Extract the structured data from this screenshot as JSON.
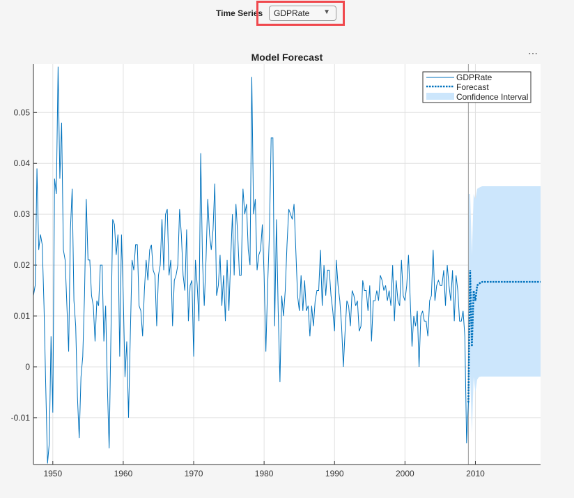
{
  "controls": {
    "time_series_label": "Time Series",
    "time_series_selected": "GDPRate",
    "more_options": "⋯"
  },
  "colors": {
    "series": "#0072bd",
    "ci": "#cce6fc",
    "highlight": "#f0484d"
  },
  "chart_data": {
    "type": "line",
    "title": "Model Forecast",
    "xlim": [
      1947.25,
      2019.25
    ],
    "ylim": [
      -0.0192,
      0.0595
    ],
    "xticks": [
      1950,
      1960,
      1970,
      1980,
      1990,
      2000,
      2010
    ],
    "xtick_labels": [
      "1950",
      "1960",
      "1970",
      "1980",
      "1990",
      "2000",
      "2010"
    ],
    "yticks": [
      -0.01,
      0,
      0.01,
      0.02,
      0.03,
      0.04,
      0.05
    ],
    "ytick_labels": [
      "-0.01",
      "0",
      "0.01",
      "0.02",
      "0.03",
      "0.04",
      "0.05"
    ],
    "grid": true,
    "legend_position": "top-right",
    "forecast_start": 2009.0,
    "series": [
      {
        "name": "GDPRate",
        "style": "solid",
        "x_start": 1947.25,
        "x_step": 0.25,
        "values": [
          0.014,
          0.016,
          0.039,
          0.023,
          0.026,
          0.024,
          0.012,
          -0.004,
          -0.019,
          -0.015,
          0.006,
          -0.009,
          0.037,
          0.034,
          0.059,
          0.037,
          0.048,
          0.023,
          0.021,
          0.012,
          0.003,
          0.027,
          0.035,
          0.013,
          0.008,
          -0.006,
          -0.014,
          -0.002,
          0.002,
          0.014,
          0.033,
          0.021,
          0.021,
          0.014,
          0.012,
          0.005,
          0.013,
          0.012,
          0.02,
          0.02,
          0.005,
          0.012,
          -0.004,
          -0.016,
          0.006,
          0.029,
          0.028,
          0.022,
          0.026,
          0.002,
          0.026,
          0.014,
          -0.002,
          0.005,
          -0.01,
          0.006,
          0.021,
          0.019,
          0.024,
          0.024,
          0.012,
          0.011,
          0.006,
          0.015,
          0.021,
          0.017,
          0.023,
          0.024,
          0.019,
          0.018,
          0.008,
          0.018,
          0.02,
          0.029,
          0.019,
          0.03,
          0.031,
          0.018,
          0.021,
          0.008,
          0.017,
          0.018,
          0.02,
          0.031,
          0.026,
          0.018,
          0.015,
          0.027,
          0.009,
          0.016,
          0.017,
          0.002,
          0.021,
          0.016,
          0.009,
          0.042,
          0.021,
          0.012,
          0.021,
          0.033,
          0.026,
          0.023,
          0.027,
          0.036,
          0.014,
          0.016,
          0.022,
          0.012,
          0.018,
          0.009,
          0.021,
          0.011,
          0.021,
          0.03,
          0.018,
          0.032,
          0.026,
          0.018,
          0.018,
          0.035,
          0.03,
          0.032,
          0.023,
          0.02,
          0.057,
          0.03,
          0.033,
          0.019,
          0.022,
          0.023,
          0.028,
          0.018,
          0.003,
          0.016,
          0.026,
          0.045,
          0.045,
          0.008,
          0.029,
          0.011,
          -0.003,
          0.014,
          0.01,
          0.015,
          0.024,
          0.031,
          0.03,
          0.029,
          0.032,
          0.023,
          0.014,
          0.011,
          0.018,
          0.011,
          0.017,
          0.011,
          0.012,
          0.006,
          0.012,
          0.008,
          0.013,
          0.015,
          0.015,
          0.023,
          0.012,
          0.02,
          0.014,
          0.019,
          0.019,
          0.014,
          0.011,
          0.007,
          0.021,
          0.016,
          0.013,
          0.008,
          0.0,
          0.007,
          0.013,
          0.012,
          0.008,
          0.015,
          0.014,
          0.012,
          0.013,
          0.007,
          0.008,
          0.017,
          0.015,
          0.015,
          0.011,
          0.016,
          0.005,
          0.013,
          0.013,
          0.015,
          0.013,
          0.018,
          0.017,
          0.015,
          0.016,
          0.013,
          0.015,
          0.012,
          0.02,
          0.009,
          0.017,
          0.013,
          0.012,
          0.021,
          0.014,
          0.013,
          0.016,
          0.022,
          0.013,
          0.004,
          0.01,
          0.008,
          0.011,
          0.0,
          0.01,
          0.011,
          0.009,
          0.009,
          0.006,
          0.013,
          0.014,
          0.023,
          0.013,
          0.016,
          0.017,
          0.016,
          0.016,
          0.019,
          0.012,
          0.02,
          0.016,
          0.013,
          0.019,
          0.009,
          0.018,
          0.015,
          0.009,
          0.009,
          0.011,
          0.006,
          -0.015,
          -0.007
        ]
      },
      {
        "name": "Forecast",
        "style": "dotted",
        "x_start": 2009.0,
        "x_step": 0.25,
        "values": [
          -0.007,
          0.019,
          0.004,
          0.015,
          0.013,
          0.016,
          0.0163,
          0.0166,
          0.0167,
          0.0167,
          0.0167,
          0.0167,
          0.0167
        ]
      },
      {
        "name": "Confidence Interval",
        "style": "band",
        "x_start": 2009.0,
        "x_step": 0.25,
        "upper": [
          0.034,
          0.034,
          0.022,
          0.034,
          0.033,
          0.035,
          0.0352,
          0.0354,
          0.0355,
          0.0355,
          0.0355,
          0.0355,
          0.0355
        ],
        "lower": [
          -0.012,
          -0.001,
          -0.013,
          -0.002,
          -0.005,
          -0.0025,
          -0.002,
          -0.0019,
          -0.0019,
          -0.0019,
          -0.0019,
          -0.0019,
          -0.0019
        ]
      }
    ]
  }
}
